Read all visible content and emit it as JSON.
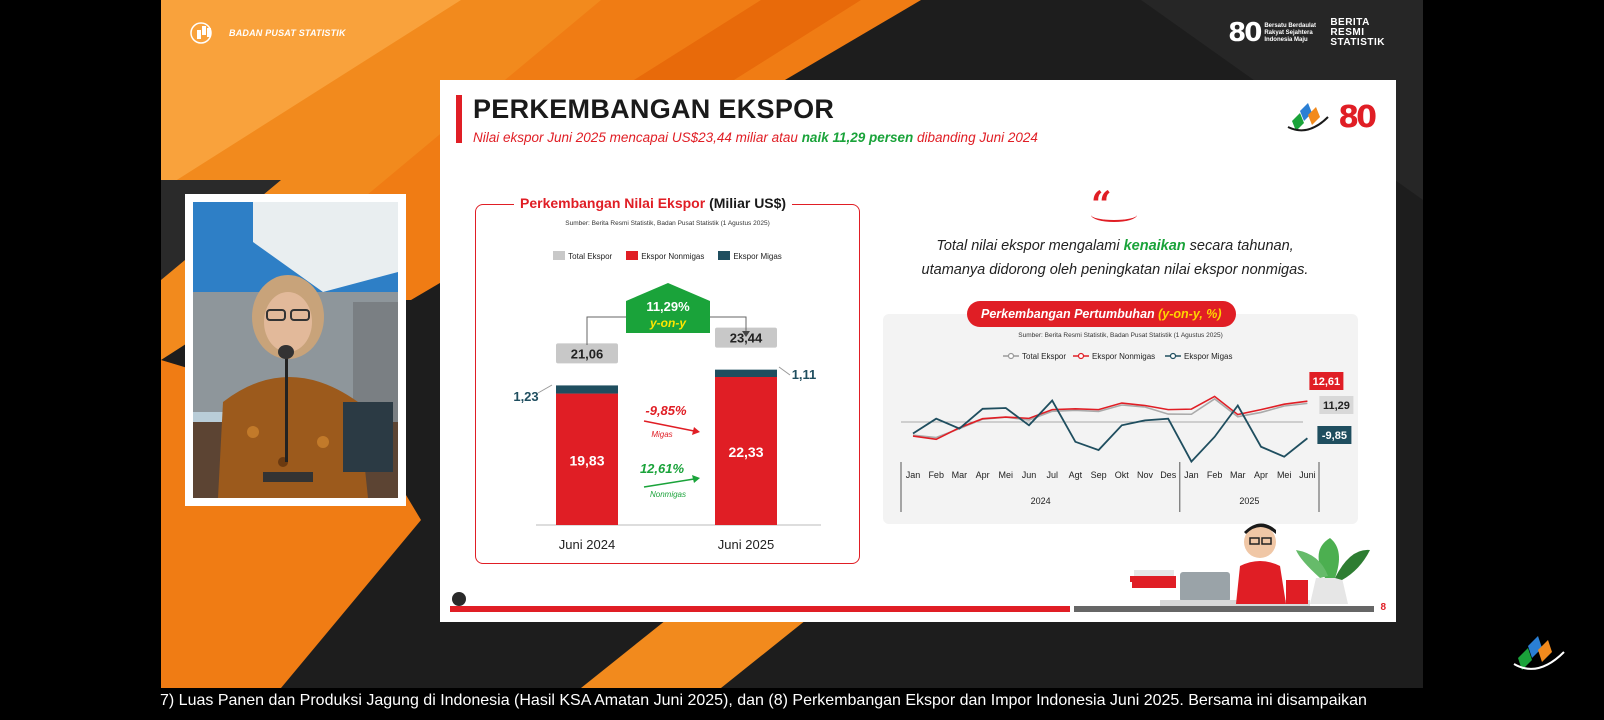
{
  "header": {
    "org": "BADAN PUSAT STATISTIK",
    "badge_number": "80",
    "badge_text": "Bersatu Berdaulat Rakyat Sejahtera Indonesia Maju",
    "brs_line1": "BERITA",
    "brs_line2": "RESMI",
    "brs_line3": "STATISTIK"
  },
  "slide": {
    "title": "PERKEMBANGAN EKSPOR",
    "subtitle_pre": "Nilai ekspor Juni 2025 mencapai US$23,44 miliar atau ",
    "subtitle_bold": "naik 11,29 persen",
    "subtitle_post": " dibanding Juni 2024",
    "logo_80": "80",
    "page": "8",
    "quote_mark": "“",
    "narrative_pre": "Total nilai ekspor mengalami ",
    "narrative_bold": "kenaikan",
    "narrative_mid": " secara tahunan,",
    "narrative_line2": "utamanya didorong oleh peningkatan nilai ekspor nonmigas."
  },
  "bar_panel": {
    "title_red": "Perkembangan Nilai Ekspor",
    "title_black": " (Miliar US$)",
    "source": "Sumber: Berita Resmi Statistik, Badan Pusat Statistik (1 Agustus 2025)",
    "legend": [
      "Total Ekspor",
      "Ekspor Nonmigas",
      "Ekspor Migas"
    ],
    "yoy_value": "11,29%",
    "yoy_label": "y-on-y",
    "migas_change": "-9,85%",
    "migas_label": "Migas",
    "nonmigas_change": "12,61%",
    "nonmigas_label": "Nonmigas"
  },
  "line_panel": {
    "title_pre": "Perkembangan Pertumbuhan ",
    "title_em": "(y-on-y, %)",
    "source": "Sumber: Berita Resmi Statistik, Badan Pusat Statistik (1 Agustus 2025)",
    "legend": [
      "Total Ekspor",
      "Ekspor Nonmigas",
      "Ekspor Migas"
    ],
    "label_nonmigas": "12,61",
    "label_total": "11,29",
    "label_migas": "-9,85"
  },
  "colors": {
    "red": "#e01e25",
    "migas": "#1f4e5f",
    "total": "#c8c8c8",
    "green": "#1aa33a",
    "orange": "#f28a1d"
  },
  "chart_data": [
    {
      "type": "bar",
      "title": "Perkembangan Nilai Ekspor (Miliar US$)",
      "categories": [
        "Juni 2024",
        "Juni 2025"
      ],
      "series": [
        {
          "name": "Ekspor Nonmigas",
          "values": [
            19.83,
            22.33
          ]
        },
        {
          "name": "Ekspor Migas",
          "values": [
            1.23,
            1.11
          ]
        },
        {
          "name": "Total Ekspor",
          "values": [
            21.06,
            23.44
          ]
        }
      ],
      "labels": {
        "nonmigas": [
          "19,83",
          "22,33"
        ],
        "migas": [
          "1,23",
          "1,11"
        ],
        "total": [
          "21,06",
          "23,44"
        ]
      },
      "ylim": [
        0,
        26
      ]
    },
    {
      "type": "line",
      "title": "Perkembangan Pertumbuhan (y-on-y, %)",
      "x": [
        "Jan",
        "Feb",
        "Mar",
        "Apr",
        "Mei",
        "Jun",
        "Jul",
        "Agt",
        "Sep",
        "Okt",
        "Nov",
        "Des",
        "Jan",
        "Feb",
        "Mar",
        "Apr",
        "Mei",
        "Juni"
      ],
      "year_groups": [
        {
          "label": "2024",
          "from": 0,
          "to": 11
        },
        {
          "label": "2025",
          "from": 12,
          "to": 17
        }
      ],
      "series": [
        {
          "name": "Total Ekspor",
          "values": [
            -8,
            -9.4,
            -4,
            1.7,
            2.9,
            1.2,
            6.5,
            7.1,
            6.4,
            10.3,
            9.1,
            4.8,
            4.7,
            14,
            3.2,
            5.8,
            9.7,
            11.29
          ]
        },
        {
          "name": "Ekspor Nonmigas",
          "values": [
            -8.5,
            -10.5,
            -3.5,
            2,
            3,
            2.2,
            7.5,
            8,
            7.5,
            11.5,
            10,
            7.5,
            7.8,
            15.5,
            4.5,
            7.5,
            10.8,
            12.61
          ]
        },
        {
          "name": "Ekspor Migas",
          "values": [
            -7,
            2,
            -4,
            8,
            8.5,
            -2,
            13,
            -12,
            -17,
            -2,
            1,
            2,
            -24,
            -9,
            10,
            -15,
            -21,
            -9.85
          ]
        }
      ],
      "ylim": [
        -30,
        22
      ]
    }
  ],
  "caption": "7) Luas Panen dan Produksi Jagung di Indonesia (Hasil KSA Amatan Juni 2025), dan (8) Perkembangan Ekspor dan Impor Indonesia Juni 2025. Bersama ini disampaikan"
}
